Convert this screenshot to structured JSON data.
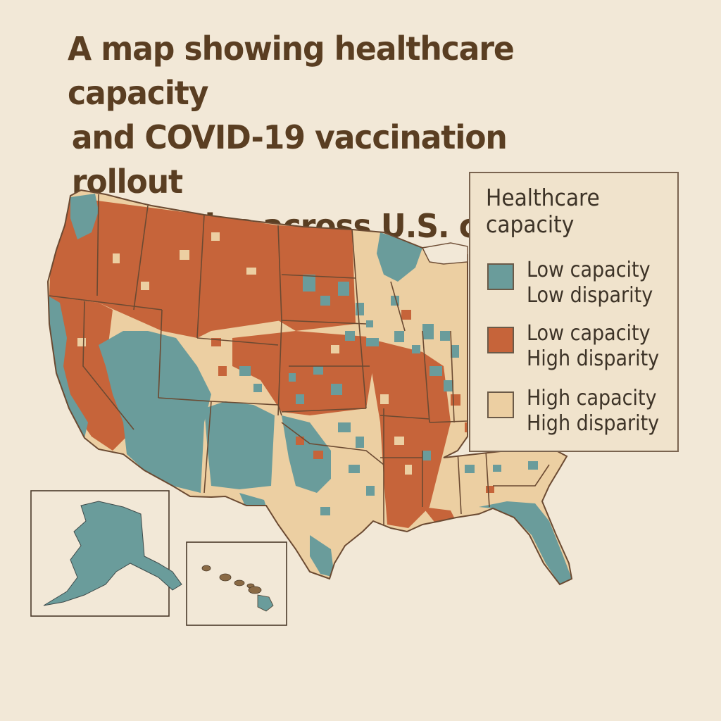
{
  "title": {
    "lines": [
      "A map showing healthcare capacity",
      "and COVID-19 vaccination rollout",
      "disparities across U.S. counties"
    ]
  },
  "legend": {
    "title": "Healthcare capacity",
    "items": [
      {
        "line1": "Low capacity",
        "line2": "Low disparity",
        "color": "#6a9c9b",
        "icon": "swatch-teal"
      },
      {
        "line1": "Low capacity",
        "line2": "High disparity",
        "color": "#c6643a",
        "icon": "swatch-rust"
      },
      {
        "line1": "High capacity",
        "line2": "High disparity",
        "color": "#eccfa2",
        "icon": "swatch-tan"
      }
    ]
  },
  "colors": {
    "background": "#f2e8d7",
    "title": "#5a3e22",
    "teal": "#6a9c9b",
    "rust": "#c6643a",
    "tan": "#eccfa2",
    "border": "#6b4a32"
  },
  "map": {
    "region": "Contiguous United States",
    "insets": [
      "Alaska",
      "Hawaii"
    ]
  }
}
